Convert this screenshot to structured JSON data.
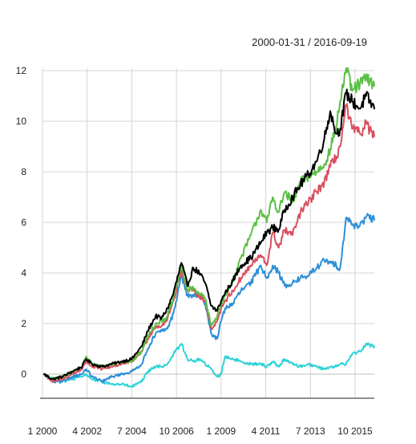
{
  "chart_data": {
    "type": "line",
    "date_range": "2000-01-31 / 2016-09-19",
    "xlim": [
      2000.08,
      2016.72
    ],
    "ylim": [
      -1.0,
      12.2
    ],
    "grid": true,
    "legend": "none",
    "x_ticks": [
      {
        "value": 2000.0,
        "label": "1 2000"
      },
      {
        "value": 2002.25,
        "label": "4 2002"
      },
      {
        "value": 2004.5,
        "label": "7 2004"
      },
      {
        "value": 2006.75,
        "label": "10 2006"
      },
      {
        "value": 2009.0,
        "label": "1 2009"
      },
      {
        "value": 2011.25,
        "label": "4 2011"
      },
      {
        "value": 2013.5,
        "label": "7 2013"
      },
      {
        "value": 2015.75,
        "label": "10 2015"
      }
    ],
    "y_ticks": [
      0,
      2,
      4,
      6,
      8,
      10,
      12
    ],
    "series": [
      {
        "color": "#000000",
        "x": [
          2000.08,
          2000.5,
          2001.0,
          2001.5,
          2002.0,
          2002.2,
          2002.5,
          2003.0,
          2003.5,
          2004.0,
          2004.5,
          2005.0,
          2005.3,
          2005.7,
          2006.0,
          2006.3,
          2006.6,
          2007.0,
          2007.3,
          2007.6,
          2007.9,
          2008.2,
          2008.5,
          2008.8,
          2009.0,
          2009.2,
          2009.6,
          2010.0,
          2010.5,
          2011.0,
          2011.3,
          2011.6,
          2011.9,
          2012.2,
          2012.6,
          2013.0,
          2013.4,
          2013.8,
          2014.2,
          2014.5,
          2014.8,
          2015.0,
          2015.3,
          2015.6,
          2016.0,
          2016.3,
          2016.72
        ],
        "values": [
          0.0,
          -0.2,
          -0.1,
          0.1,
          0.3,
          0.6,
          0.4,
          0.3,
          0.4,
          0.5,
          0.6,
          1.1,
          1.7,
          2.3,
          2.2,
          2.6,
          3.2,
          4.4,
          3.5,
          4.2,
          4.0,
          3.6,
          2.7,
          2.5,
          2.9,
          3.2,
          3.7,
          4.3,
          4.6,
          5.2,
          5.6,
          5.8,
          5.7,
          6.5,
          7.0,
          7.5,
          7.9,
          8.4,
          9.3,
          10.4,
          9.5,
          9.7,
          11.1,
          10.8,
          10.5,
          11.0,
          10.5
        ]
      },
      {
        "color": "#5ac044",
        "x": [
          2000.08,
          2000.5,
          2001.0,
          2001.5,
          2002.0,
          2002.2,
          2002.5,
          2003.0,
          2003.5,
          2004.0,
          2004.5,
          2005.0,
          2005.3,
          2005.7,
          2006.0,
          2006.3,
          2006.6,
          2007.0,
          2007.3,
          2007.6,
          2007.9,
          2008.2,
          2008.5,
          2008.8,
          2009.0,
          2009.2,
          2009.6,
          2010.0,
          2010.5,
          2011.0,
          2011.3,
          2011.6,
          2011.9,
          2012.2,
          2012.6,
          2013.0,
          2013.4,
          2013.8,
          2014.2,
          2014.5,
          2014.8,
          2015.0,
          2015.3,
          2015.6,
          2016.0,
          2016.3,
          2016.72
        ],
        "values": [
          0.0,
          -0.2,
          -0.1,
          0.1,
          0.3,
          0.7,
          0.4,
          0.3,
          0.4,
          0.5,
          0.5,
          0.9,
          1.5,
          2.0,
          2.1,
          2.3,
          3.0,
          4.3,
          3.3,
          3.4,
          3.2,
          3.0,
          1.9,
          2.3,
          2.8,
          3.1,
          3.7,
          4.6,
          5.5,
          6.5,
          6.0,
          7.0,
          6.4,
          7.2,
          6.8,
          7.6,
          7.8,
          8.0,
          8.3,
          8.9,
          9.8,
          10.8,
          12.1,
          11.2,
          11.5,
          11.7,
          11.4
        ]
      },
      {
        "color": "#d9505e",
        "x": [
          2000.08,
          2000.5,
          2001.0,
          2001.5,
          2002.0,
          2002.2,
          2002.5,
          2003.0,
          2003.5,
          2004.0,
          2004.5,
          2005.0,
          2005.3,
          2005.7,
          2006.0,
          2006.3,
          2006.6,
          2007.0,
          2007.3,
          2007.6,
          2007.9,
          2008.2,
          2008.5,
          2008.8,
          2009.0,
          2009.2,
          2009.6,
          2010.0,
          2010.5,
          2011.0,
          2011.3,
          2011.6,
          2011.9,
          2012.2,
          2012.6,
          2013.0,
          2013.4,
          2013.8,
          2014.2,
          2014.5,
          2014.8,
          2015.0,
          2015.3,
          2015.6,
          2016.0,
          2016.3,
          2016.72
        ],
        "values": [
          0.0,
          -0.3,
          -0.2,
          0.0,
          0.2,
          0.5,
          0.3,
          0.2,
          0.3,
          0.4,
          0.5,
          0.9,
          1.4,
          1.9,
          1.9,
          2.2,
          2.9,
          4.1,
          3.3,
          3.3,
          3.1,
          2.9,
          1.8,
          2.1,
          2.6,
          2.9,
          3.3,
          3.8,
          4.3,
          4.7,
          4.3,
          5.6,
          5.0,
          5.7,
          5.5,
          6.4,
          6.8,
          7.2,
          7.6,
          8.2,
          8.6,
          9.0,
          10.6,
          9.7,
          9.5,
          9.9,
          9.4
        ]
      },
      {
        "color": "#2d8fd8",
        "x": [
          2000.08,
          2000.5,
          2001.0,
          2001.5,
          2002.0,
          2002.2,
          2002.5,
          2003.0,
          2003.5,
          2004.0,
          2004.5,
          2005.0,
          2005.3,
          2005.7,
          2006.0,
          2006.3,
          2006.6,
          2007.0,
          2007.3,
          2007.6,
          2007.9,
          2008.2,
          2008.5,
          2008.8,
          2009.0,
          2009.2,
          2009.6,
          2010.0,
          2010.5,
          2011.0,
          2011.3,
          2011.6,
          2011.9,
          2012.2,
          2012.6,
          2013.0,
          2013.4,
          2013.8,
          2014.2,
          2014.5,
          2014.8,
          2015.0,
          2015.3,
          2015.6,
          2016.0,
          2016.3,
          2016.72
        ],
        "values": [
          0.0,
          -0.3,
          -0.3,
          -0.1,
          0.0,
          0.2,
          -0.1,
          -0.3,
          -0.1,
          0.0,
          0.1,
          0.4,
          1.0,
          1.6,
          1.7,
          1.8,
          2.4,
          3.9,
          3.1,
          3.1,
          3.1,
          2.8,
          1.6,
          1.4,
          2.1,
          2.6,
          2.8,
          3.3,
          3.6,
          4.3,
          3.8,
          4.3,
          4.0,
          3.5,
          3.6,
          3.8,
          3.9,
          4.2,
          4.5,
          4.4,
          4.3,
          4.2,
          6.2,
          5.9,
          5.9,
          6.2,
          6.1
        ]
      },
      {
        "color": "#2ed3d6",
        "x": [
          2000.08,
          2000.5,
          2001.0,
          2001.5,
          2002.0,
          2002.2,
          2002.5,
          2003.0,
          2003.5,
          2004.0,
          2004.5,
          2005.0,
          2005.3,
          2005.7,
          2006.0,
          2006.3,
          2006.6,
          2007.0,
          2007.3,
          2007.6,
          2007.9,
          2008.2,
          2008.5,
          2008.8,
          2009.0,
          2009.2,
          2009.6,
          2010.0,
          2010.5,
          2011.0,
          2011.3,
          2011.6,
          2011.9,
          2012.2,
          2012.6,
          2013.0,
          2013.4,
          2013.8,
          2014.2,
          2014.5,
          2014.8,
          2015.0,
          2015.3,
          2015.6,
          2016.0,
          2016.3,
          2016.72
        ],
        "values": [
          0.0,
          -0.2,
          -0.3,
          -0.2,
          -0.1,
          0.0,
          -0.2,
          -0.3,
          -0.4,
          -0.4,
          -0.5,
          -0.3,
          0.1,
          0.3,
          0.3,
          0.4,
          0.8,
          1.2,
          0.6,
          0.5,
          0.6,
          0.4,
          0.2,
          -0.1,
          0.0,
          0.7,
          0.6,
          0.5,
          0.4,
          0.4,
          0.3,
          0.5,
          0.3,
          0.6,
          0.4,
          0.3,
          0.4,
          0.3,
          0.2,
          0.3,
          0.3,
          0.4,
          0.4,
          0.8,
          0.9,
          1.2,
          1.1
        ]
      }
    ]
  }
}
